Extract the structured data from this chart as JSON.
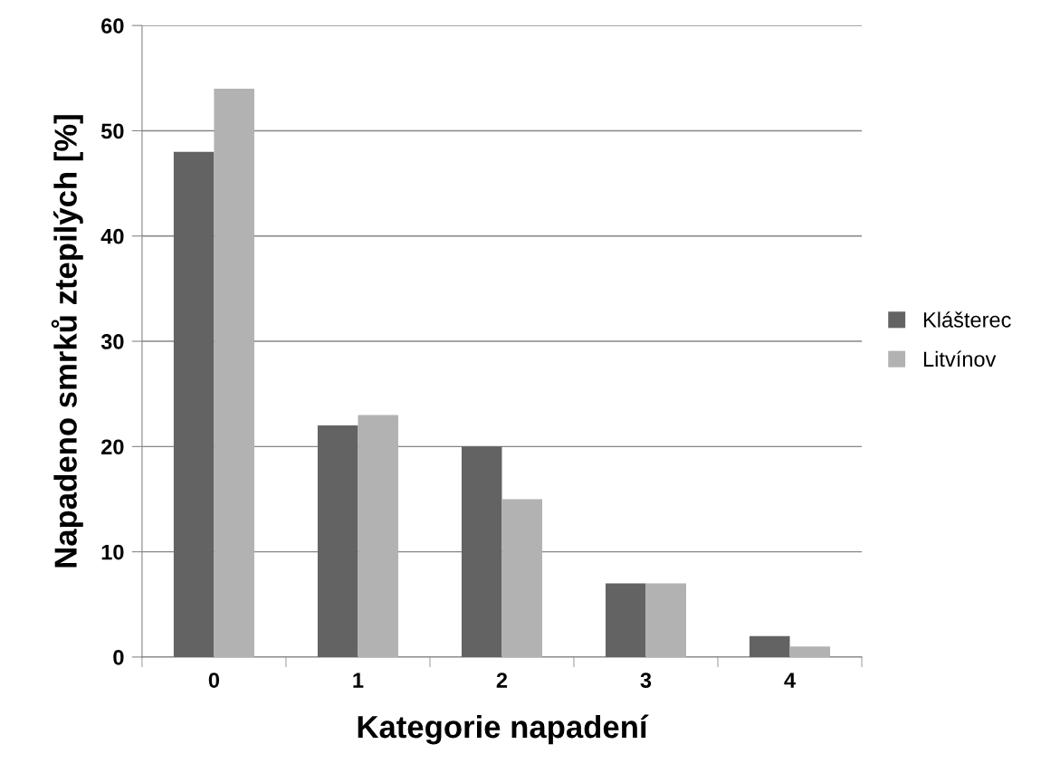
{
  "chart_data": {
    "type": "bar",
    "xlabel": "Kategorie napadení",
    "ylabel": "Napadeno smrků ztepilých [%]",
    "categories": [
      "0",
      "1",
      "2",
      "3",
      "4"
    ],
    "series": [
      {
        "name": "Klášterec",
        "color": "#636363",
        "values": [
          48,
          22,
          20,
          7,
          2
        ]
      },
      {
        "name": "Litvínov",
        "color": "#b2b2b2",
        "values": [
          54,
          23,
          15,
          7,
          1
        ]
      }
    ],
    "ylim": [
      0,
      60
    ],
    "yticks": [
      0,
      10,
      20,
      30,
      40,
      50,
      60
    ],
    "grid": "y",
    "legend": "right"
  }
}
